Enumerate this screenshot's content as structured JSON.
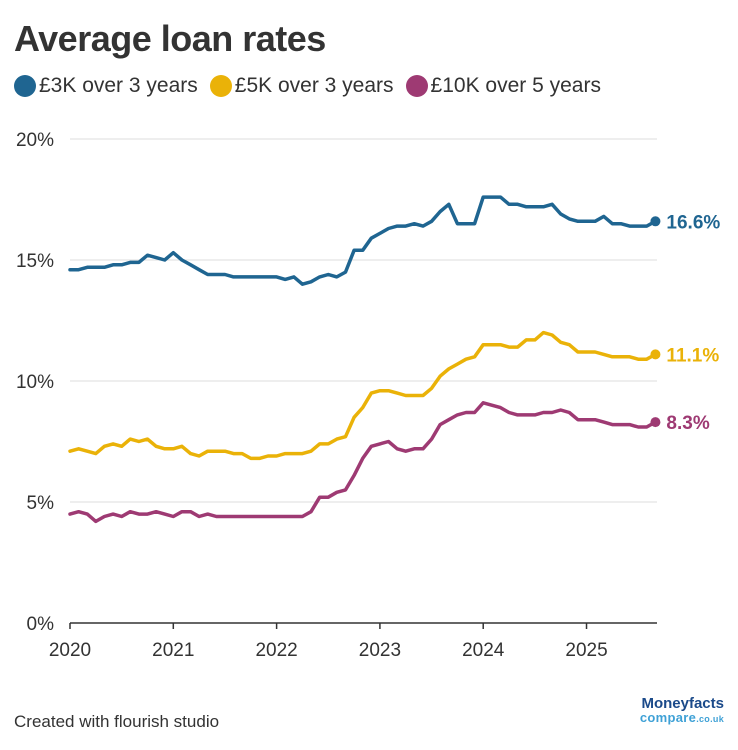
{
  "title": "Average loan rates",
  "footer": "Created with flourish studio",
  "logo": {
    "top": "Moneyfacts",
    "bottom": "compare",
    "tld": ".co.uk"
  },
  "colors": {
    "grid": "#dddddd",
    "axis": "#333333",
    "text": "#333333"
  },
  "chart_data": {
    "type": "line",
    "title": "Average loan rates",
    "xlabel": "",
    "ylabel": "",
    "xlim": [
      2020.0,
      2025.75
    ],
    "ylim": [
      0,
      20
    ],
    "xticks": [
      2020,
      2021,
      2022,
      2023,
      2024,
      2025
    ],
    "yticks": [
      0,
      5,
      10,
      15,
      20
    ],
    "ytick_labels": [
      "0%",
      "5%",
      "10%",
      "15%",
      "20%"
    ],
    "grid": true,
    "legend": "top-left",
    "x": [
      2020.0,
      2020.083,
      2020.167,
      2020.25,
      2020.333,
      2020.417,
      2020.5,
      2020.583,
      2020.667,
      2020.75,
      2020.833,
      2020.917,
      2021.0,
      2021.083,
      2021.167,
      2021.25,
      2021.333,
      2021.417,
      2021.5,
      2021.583,
      2021.667,
      2021.75,
      2021.833,
      2021.917,
      2022.0,
      2022.083,
      2022.167,
      2022.25,
      2022.333,
      2022.417,
      2022.5,
      2022.583,
      2022.667,
      2022.75,
      2022.833,
      2022.917,
      2023.0,
      2023.083,
      2023.167,
      2023.25,
      2023.333,
      2023.417,
      2023.5,
      2023.583,
      2023.667,
      2023.75,
      2023.833,
      2023.917,
      2024.0,
      2024.083,
      2024.167,
      2024.25,
      2024.333,
      2024.417,
      2024.5,
      2024.583,
      2024.667,
      2024.75,
      2024.833,
      2024.917,
      2025.0,
      2025.083,
      2025.167,
      2025.25,
      2025.333,
      2025.417,
      2025.5,
      2025.583,
      2025.667
    ],
    "series": [
      {
        "name": "£3K over 3 years",
        "color": "#1f6591",
        "end_label": "16.6%",
        "values": [
          14.6,
          14.6,
          14.7,
          14.7,
          14.7,
          14.8,
          14.8,
          14.9,
          14.9,
          15.2,
          15.1,
          15.0,
          15.3,
          15.0,
          14.8,
          14.6,
          14.4,
          14.4,
          14.4,
          14.3,
          14.3,
          14.3,
          14.3,
          14.3,
          14.3,
          14.2,
          14.3,
          14.0,
          14.1,
          14.3,
          14.4,
          14.3,
          14.5,
          15.4,
          15.4,
          15.9,
          16.1,
          16.3,
          16.4,
          16.4,
          16.5,
          16.4,
          16.6,
          17.0,
          17.3,
          16.5,
          16.5,
          16.5,
          17.6,
          17.6,
          17.6,
          17.3,
          17.3,
          17.2,
          17.2,
          17.2,
          17.3,
          16.9,
          16.7,
          16.6,
          16.6,
          16.6,
          16.8,
          16.5,
          16.5,
          16.4,
          16.4,
          16.4,
          16.6
        ]
      },
      {
        "name": "£5K over 3 years",
        "color": "#eab208",
        "end_label": "11.1%",
        "values": [
          7.1,
          7.2,
          7.1,
          7.0,
          7.3,
          7.4,
          7.3,
          7.6,
          7.5,
          7.6,
          7.3,
          7.2,
          7.2,
          7.3,
          7.0,
          6.9,
          7.1,
          7.1,
          7.1,
          7.0,
          7.0,
          6.8,
          6.8,
          6.9,
          6.9,
          7.0,
          7.0,
          7.0,
          7.1,
          7.4,
          7.4,
          7.6,
          7.7,
          8.5,
          8.9,
          9.5,
          9.6,
          9.6,
          9.5,
          9.4,
          9.4,
          9.4,
          9.7,
          10.2,
          10.5,
          10.7,
          10.9,
          11.0,
          11.5,
          11.5,
          11.5,
          11.4,
          11.4,
          11.7,
          11.7,
          12.0,
          11.9,
          11.6,
          11.5,
          11.2,
          11.2,
          11.2,
          11.1,
          11.0,
          11.0,
          11.0,
          10.9,
          10.9,
          11.1
        ]
      },
      {
        "name": "£10K over 5 years",
        "color": "#9e3a73",
        "end_label": "8.3%",
        "values": [
          4.5,
          4.6,
          4.5,
          4.2,
          4.4,
          4.5,
          4.4,
          4.6,
          4.5,
          4.5,
          4.6,
          4.5,
          4.4,
          4.6,
          4.6,
          4.4,
          4.5,
          4.4,
          4.4,
          4.4,
          4.4,
          4.4,
          4.4,
          4.4,
          4.4,
          4.4,
          4.4,
          4.4,
          4.6,
          5.2,
          5.2,
          5.4,
          5.5,
          6.1,
          6.8,
          7.3,
          7.4,
          7.5,
          7.2,
          7.1,
          7.2,
          7.2,
          7.6,
          8.2,
          8.4,
          8.6,
          8.7,
          8.7,
          9.1,
          9.0,
          8.9,
          8.7,
          8.6,
          8.6,
          8.6,
          8.7,
          8.7,
          8.8,
          8.7,
          8.4,
          8.4,
          8.4,
          8.3,
          8.2,
          8.2,
          8.2,
          8.1,
          8.1,
          8.3
        ]
      }
    ]
  }
}
